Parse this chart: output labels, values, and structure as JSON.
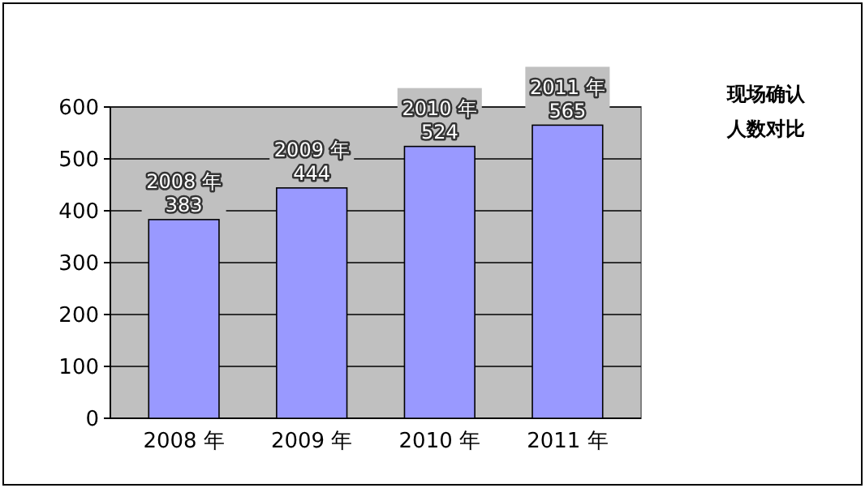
{
  "chart_data": {
    "type": "bar",
    "title": "现场确认人数对比",
    "categories": [
      "2008 年",
      "2009 年",
      "2010 年",
      "2011 年"
    ],
    "values": [
      383,
      444,
      524,
      565
    ],
    "color": "#9999ff",
    "ylim": [
      0,
      600
    ],
    "yticks": [
      0,
      100,
      200,
      300,
      400,
      500,
      600
    ],
    "grid": "y",
    "data_labels": true
  }
}
